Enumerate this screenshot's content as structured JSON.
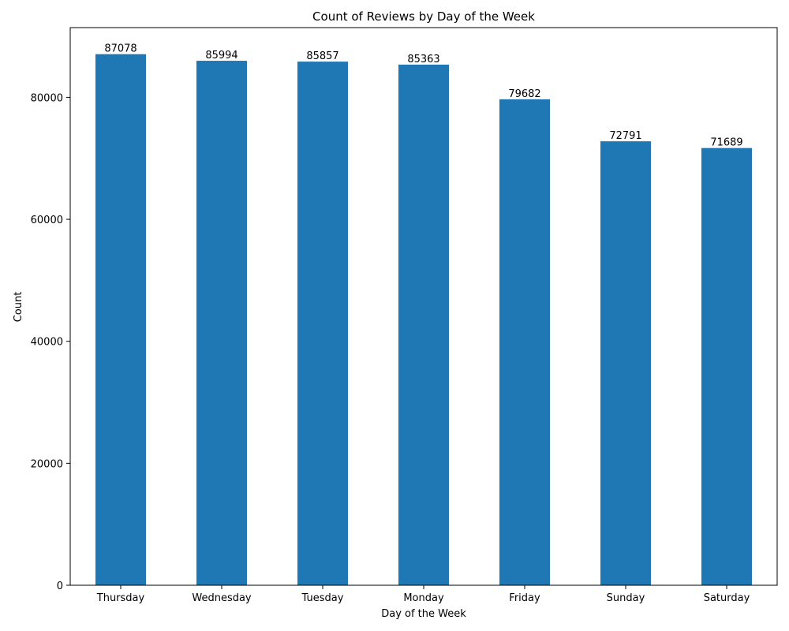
{
  "chart_data": {
    "type": "bar",
    "title": "Count of Reviews by Day of the Week",
    "xlabel": "Day of the Week",
    "ylabel": "Count",
    "categories": [
      "Thursday",
      "Wednesday",
      "Tuesday",
      "Monday",
      "Friday",
      "Sunday",
      "Saturday"
    ],
    "values": [
      87078,
      85994,
      85857,
      85363,
      79682,
      72791,
      71689
    ],
    "data_labels": [
      "87078",
      "85994",
      "85857",
      "85363",
      "79682",
      "72791",
      "71689"
    ],
    "yticks": [
      0,
      20000,
      40000,
      60000,
      80000
    ],
    "ytick_labels": [
      "0",
      "20000",
      "40000",
      "60000",
      "80000"
    ],
    "ylim": [
      0,
      91432
    ],
    "grid": false,
    "bar_color": "#1f77b4"
  }
}
